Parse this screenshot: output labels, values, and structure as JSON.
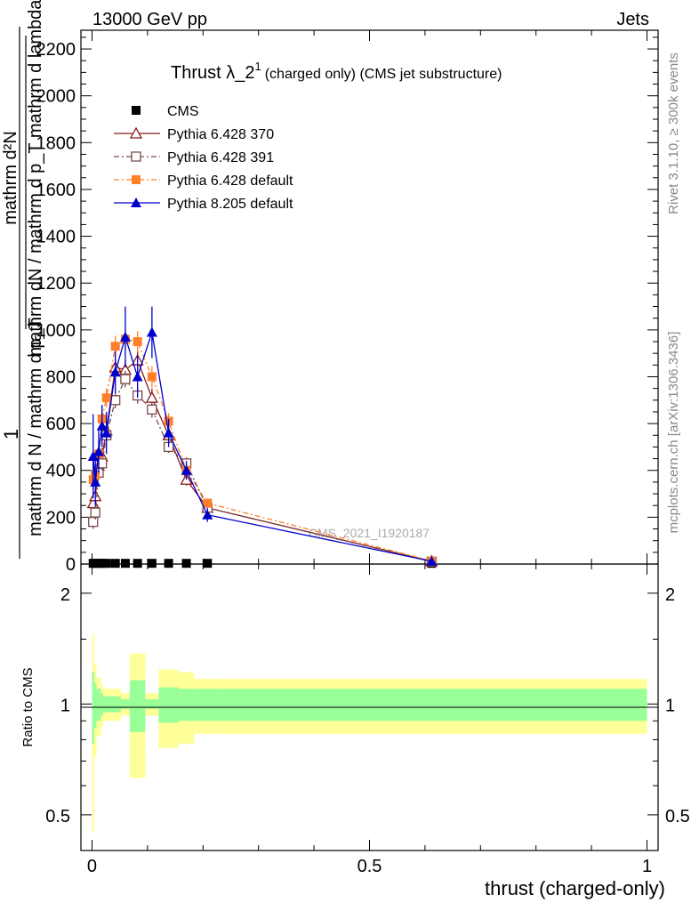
{
  "header": {
    "left": "13000 GeV pp",
    "right": "Jets"
  },
  "side_labels": {
    "rivet": "Rivet 3.1.10, ≥ 300k events",
    "mcplots": "mcplots.cern.ch [arXiv:1306.3436]"
  },
  "watermark": "CMS_2021_I1920187",
  "chart_data": {
    "type": "line",
    "title": "Thrust λ_2",
    "title_sup": "1",
    "title_suffix": "(charged only) (CMS jet substructure)",
    "xlabel": "thrust (charged-only)",
    "ylabel_numerator": "mathrm d²N",
    "ylabel_lines": [
      "mathrm dN / mathrm d p_T mathrm d lambda",
      "mathrm d N / mathrm d p_T"
    ],
    "ylabel_one": "1",
    "xlim": [
      -0.02,
      1.02
    ],
    "ylim": [
      0,
      2280
    ],
    "y_ticks": [
      "0",
      "200",
      "400",
      "600",
      "800",
      "1000",
      "1200",
      "1400",
      "1600",
      "1800",
      "2000",
      "2200"
    ],
    "x_ticks": [
      "0",
      "0.5",
      "1"
    ],
    "legend_position": "top-left",
    "series": [
      {
        "name": "CMS",
        "color": "#000000",
        "marker": "square-filled",
        "x": [
          0.002,
          0.006,
          0.012,
          0.018,
          0.026,
          0.042,
          0.06,
          0.082,
          0.108,
          0.138,
          0.17,
          0.208,
          0.612
        ],
        "y": [
          3,
          3,
          3,
          3,
          3,
          3,
          3,
          3,
          3,
          3,
          3,
          3,
          3
        ],
        "err": [
          0,
          0,
          0,
          0,
          0,
          0,
          0,
          0,
          0,
          0,
          0,
          0,
          0
        ]
      },
      {
        "name": "Pythia 6.428 370",
        "color": "#8b1a1a",
        "marker": "triangle-open",
        "x": [
          0.002,
          0.006,
          0.012,
          0.018,
          0.026,
          0.042,
          0.06,
          0.082,
          0.108,
          0.138,
          0.17,
          0.208,
          0.612
        ],
        "y": [
          260,
          290,
          420,
          460,
          570,
          840,
          830,
          870,
          710,
          550,
          360,
          240,
          12
        ],
        "err": [
          40,
          35,
          35,
          35,
          35,
          40,
          40,
          40,
          40,
          30,
          25,
          15,
          2
        ]
      },
      {
        "name": "Pythia 6.428 391",
        "color": "#7a4a4a",
        "marker": "square-open",
        "x": [
          0.002,
          0.006,
          0.012,
          0.018,
          0.026,
          0.042,
          0.06,
          0.082,
          0.108,
          0.138,
          0.17,
          0.208,
          0.612
        ],
        "y": [
          180,
          220,
          390,
          430,
          550,
          700,
          790,
          720,
          660,
          500,
          430,
          240,
          10
        ],
        "err": [
          30,
          30,
          30,
          30,
          30,
          35,
          35,
          35,
          35,
          25,
          25,
          15,
          2
        ]
      },
      {
        "name": "Pythia 6.428 default",
        "color": "#ff7f2a",
        "marker": "square-filled",
        "x": [
          0.002,
          0.006,
          0.012,
          0.018,
          0.026,
          0.042,
          0.06,
          0.082,
          0.108,
          0.138,
          0.17,
          0.208,
          0.612
        ],
        "y": [
          360,
          380,
          470,
          620,
          710,
          930,
          960,
          950,
          800,
          610,
          400,
          260,
          13
        ],
        "err": [
          45,
          40,
          40,
          40,
          40,
          45,
          45,
          45,
          45,
          35,
          30,
          20,
          2
        ]
      },
      {
        "name": "Pythia 8.205 default",
        "color": "#0000cc",
        "marker": "triangle-filled",
        "x": [
          0.002,
          0.006,
          0.012,
          0.018,
          0.026,
          0.042,
          0.06,
          0.082,
          0.108,
          0.138,
          0.17,
          0.208,
          0.612
        ],
        "y": [
          460,
          350,
          480,
          590,
          560,
          820,
          970,
          800,
          990,
          560,
          400,
          210,
          12
        ],
        "err": [
          180,
          100,
          90,
          90,
          90,
          90,
          130,
          90,
          110,
          60,
          40,
          30,
          3
        ]
      }
    ],
    "ratio": {
      "ylabel": "Ratio to CMS",
      "y_ticks": [
        "0.5",
        "1",
        "2"
      ],
      "ylim": [
        0.4,
        2.4
      ],
      "edges": [
        0.0,
        0.004,
        0.008,
        0.016,
        0.02,
        0.032,
        0.052,
        0.068,
        0.096,
        0.12,
        0.156,
        0.184,
        0.232,
        1.0
      ],
      "green_lo": [
        0.78,
        0.86,
        0.9,
        0.93,
        0.95,
        0.95,
        0.97,
        0.84,
        0.97,
        0.89,
        0.9,
        0.9,
        0.9
      ],
      "green_hi": [
        1.22,
        1.14,
        1.1,
        1.07,
        1.05,
        1.05,
        1.03,
        1.16,
        1.03,
        1.11,
        1.1,
        1.1,
        1.1
      ],
      "yellow_lo": [
        0.45,
        0.72,
        0.82,
        0.87,
        0.9,
        0.9,
        0.93,
        0.63,
        0.93,
        0.76,
        0.78,
        0.83,
        0.83
      ],
      "yellow_hi": [
        1.55,
        1.28,
        1.18,
        1.13,
        1.1,
        1.1,
        1.07,
        1.37,
        1.07,
        1.24,
        1.22,
        1.17,
        1.17
      ]
    }
  }
}
